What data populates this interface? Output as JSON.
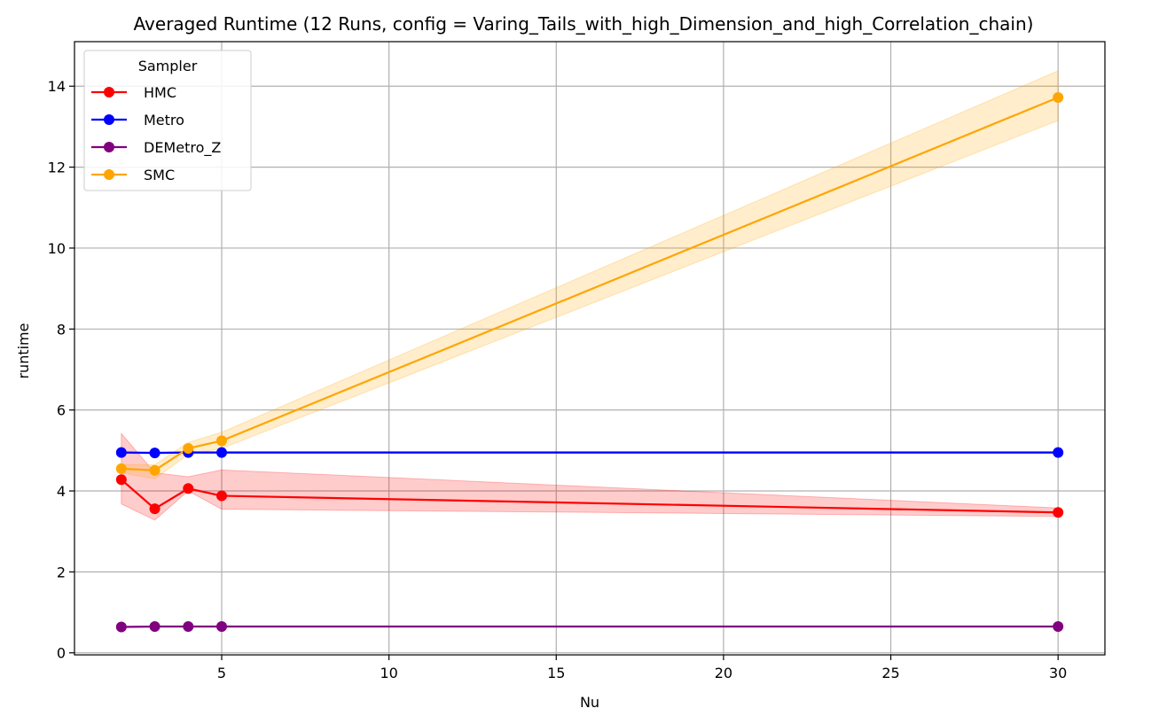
{
  "chart_data": {
    "type": "line",
    "title": "Averaged Runtime (12 Runs, config = Varing_Tails_with_high_Dimension_and_high_Correlation_chain)",
    "xlabel": "Nu",
    "ylabel": "runtime",
    "xlim": [
      0.6,
      31.4
    ],
    "ylim": [
      -0.05,
      15.1
    ],
    "xticks": [
      5,
      10,
      15,
      20,
      25,
      30
    ],
    "yticks": [
      0,
      2,
      4,
      6,
      8,
      10,
      12,
      14
    ],
    "grid": true,
    "legend": {
      "title": "Sampler",
      "placement": "top-left"
    },
    "x": [
      2,
      3,
      4,
      5,
      30
    ],
    "series": [
      {
        "name": "HMC",
        "color": "#ff0000",
        "values": [
          4.28,
          3.56,
          4.06,
          3.88,
          3.47
        ],
        "band_low": [
          3.68,
          3.28,
          4.0,
          3.55,
          3.37
        ],
        "band_high": [
          5.42,
          4.45,
          4.35,
          4.52,
          3.58
        ]
      },
      {
        "name": "Metro",
        "color": "#0000ff",
        "values": [
          4.95,
          4.94,
          4.95,
          4.95,
          4.95
        ],
        "band_low": [
          4.93,
          4.92,
          4.93,
          4.93,
          4.93
        ],
        "band_high": [
          4.97,
          4.96,
          4.97,
          4.97,
          4.97
        ]
      },
      {
        "name": "DEMetro_Z",
        "color": "#800080",
        "values": [
          0.64,
          0.65,
          0.65,
          0.65,
          0.65
        ],
        "band_low": [
          0.63,
          0.64,
          0.64,
          0.64,
          0.64
        ],
        "band_high": [
          0.65,
          0.66,
          0.66,
          0.66,
          0.66
        ]
      },
      {
        "name": "SMC",
        "color": "#ffa500",
        "values": [
          4.55,
          4.51,
          5.05,
          5.24,
          13.72
        ],
        "band_low": [
          4.45,
          4.3,
          4.9,
          5.05,
          13.15
        ],
        "band_high": [
          4.65,
          4.65,
          5.2,
          5.45,
          14.38
        ]
      }
    ]
  }
}
